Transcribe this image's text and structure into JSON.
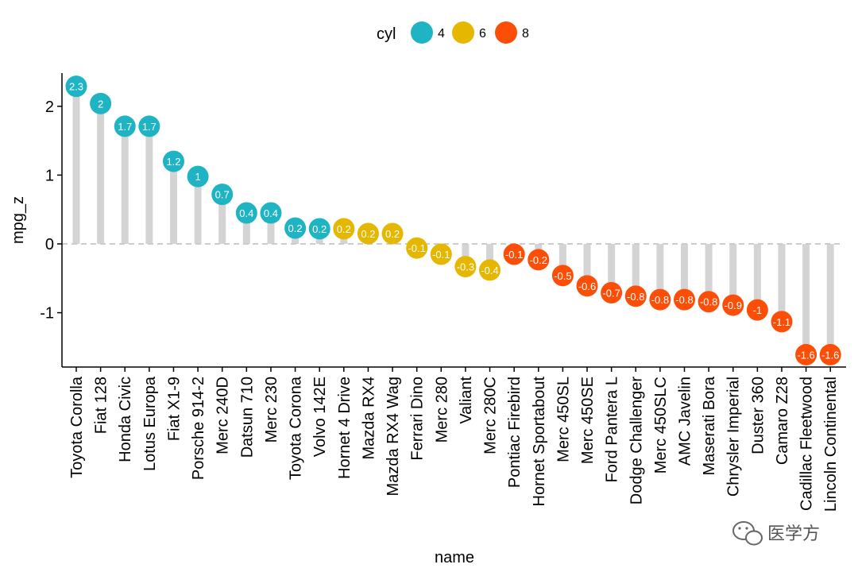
{
  "chart_data": {
    "type": "lollipop",
    "title": "",
    "xlabel": "name",
    "ylabel": "mpg_z",
    "ylim": [
      -1.85,
      2.5
    ],
    "yticks": [
      2,
      1,
      0,
      -1
    ],
    "ytick_labels": [
      "2",
      "1",
      "0",
      "-1"
    ],
    "reference_line": 0,
    "legend": {
      "title": "cyl",
      "position": "top",
      "entries": [
        {
          "label": "4",
          "color": "#1fb4c3"
        },
        {
          "label": "6",
          "color": "#e6b700"
        },
        {
          "label": "8",
          "color": "#fc4e07"
        }
      ]
    },
    "points": [
      {
        "name": "Toyota Corolla",
        "value": 2.29,
        "label": "2.3",
        "cyl": "4"
      },
      {
        "name": "Fiat 128",
        "value": 2.04,
        "label": "2",
        "cyl": "4"
      },
      {
        "name": "Honda Civic",
        "value": 1.71,
        "label": "1.7",
        "cyl": "4"
      },
      {
        "name": "Lotus Europa",
        "value": 1.71,
        "label": "1.7",
        "cyl": "4"
      },
      {
        "name": "Fiat X1-9",
        "value": 1.2,
        "label": "1.2",
        "cyl": "4"
      },
      {
        "name": "Porsche 914-2",
        "value": 0.98,
        "label": "1",
        "cyl": "4"
      },
      {
        "name": "Merc 240D",
        "value": 0.72,
        "label": "0.7",
        "cyl": "4"
      },
      {
        "name": "Datsun 710",
        "value": 0.45,
        "label": "0.4",
        "cyl": "4"
      },
      {
        "name": "Merc 230",
        "value": 0.45,
        "label": "0.4",
        "cyl": "4"
      },
      {
        "name": "Toyota Corona",
        "value": 0.23,
        "label": "0.2",
        "cyl": "4"
      },
      {
        "name": "Volvo 142E",
        "value": 0.22,
        "label": "0.2",
        "cyl": "4"
      },
      {
        "name": "Hornet 4 Drive",
        "value": 0.22,
        "label": "0.2",
        "cyl": "6"
      },
      {
        "name": "Mazda RX4",
        "value": 0.15,
        "label": "0.2",
        "cyl": "6"
      },
      {
        "name": "Mazda RX4 Wag",
        "value": 0.15,
        "label": "0.2",
        "cyl": "6"
      },
      {
        "name": "Ferrari Dino",
        "value": -0.06,
        "label": "-0.1",
        "cyl": "6"
      },
      {
        "name": "Merc 280",
        "value": -0.15,
        "label": "-0.1",
        "cyl": "6"
      },
      {
        "name": "Valiant",
        "value": -0.33,
        "label": "-0.3",
        "cyl": "6"
      },
      {
        "name": "Merc 280C",
        "value": -0.38,
        "label": "-0.4",
        "cyl": "6"
      },
      {
        "name": "Pontiac Firebird",
        "value": -0.15,
        "label": "-0.1",
        "cyl": "8"
      },
      {
        "name": "Hornet Sportabout",
        "value": -0.23,
        "label": "-0.2",
        "cyl": "8"
      },
      {
        "name": "Merc 450SL",
        "value": -0.46,
        "label": "-0.5",
        "cyl": "8"
      },
      {
        "name": "Merc 450SE",
        "value": -0.61,
        "label": "-0.6",
        "cyl": "8"
      },
      {
        "name": "Ford Pantera L",
        "value": -0.71,
        "label": "-0.7",
        "cyl": "8"
      },
      {
        "name": "Dodge Challenger",
        "value": -0.76,
        "label": "-0.8",
        "cyl": "8"
      },
      {
        "name": "Merc 450SLC",
        "value": -0.81,
        "label": "-0.8",
        "cyl": "8"
      },
      {
        "name": "AMC Javelin",
        "value": -0.81,
        "label": "-0.8",
        "cyl": "8"
      },
      {
        "name": "Maserati Bora",
        "value": -0.84,
        "label": "-0.8",
        "cyl": "8"
      },
      {
        "name": "Chrysler Imperial",
        "value": -0.89,
        "label": "-0.9",
        "cyl": "8"
      },
      {
        "name": "Duster 360",
        "value": -0.96,
        "label": "-1",
        "cyl": "8"
      },
      {
        "name": "Camaro Z28",
        "value": -1.13,
        "label": "-1.1",
        "cyl": "8"
      },
      {
        "name": "Cadillac Fleetwood",
        "value": -1.61,
        "label": "-1.6",
        "cyl": "8"
      },
      {
        "name": "Lincoln Continental",
        "value": -1.61,
        "label": "-1.6",
        "cyl": "8"
      }
    ]
  },
  "watermark": {
    "text": "医学方",
    "icon": "wechat-icon"
  }
}
